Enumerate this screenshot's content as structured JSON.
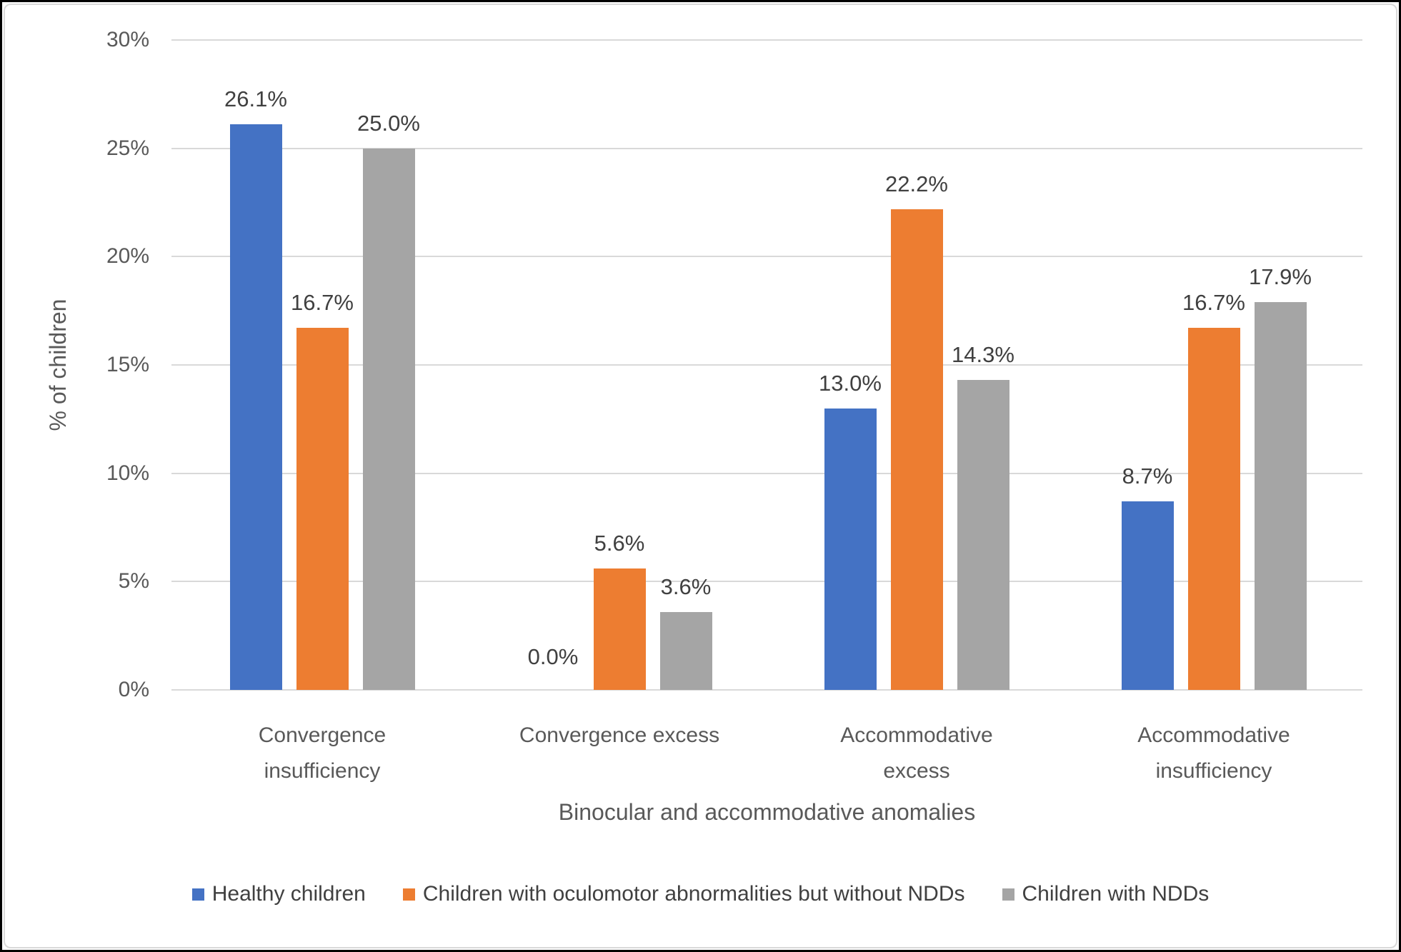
{
  "chart_data": {
    "type": "bar",
    "title": "",
    "categories": [
      "Convergence insufficiency",
      "Convergence excess",
      "Accommodative excess",
      "Accommodative insufficiency"
    ],
    "series": [
      {
        "name": "Healthy children",
        "color": "#4472C4",
        "values": [
          26.1,
          0.0,
          13.0,
          8.7
        ]
      },
      {
        "name": "Children with oculomotor abnormalities but without NDDs",
        "color": "#ED7D31",
        "values": [
          16.7,
          5.6,
          22.2,
          16.7
        ]
      },
      {
        "name": "Children with NDDs",
        "color": "#A5A5A5",
        "values": [
          25.0,
          3.6,
          14.3,
          17.9
        ]
      }
    ],
    "data_label_format": "one-decimal-percent",
    "xlabel": "Binocular and accommodative anomalies",
    "ylabel": "% of children",
    "ylim": [
      0,
      30
    ],
    "yticks": [
      0,
      5,
      10,
      15,
      20,
      25,
      30
    ],
    "ytick_labels": [
      "0%",
      "5%",
      "10%",
      "15%",
      "20%",
      "25%",
      "30%"
    ],
    "grid": true,
    "legend_position": "bottom"
  },
  "style": {
    "gridline_color": "#D9D9D9",
    "axis_text_color": "#595959",
    "data_label_color": "#404040",
    "background": "#FFFFFF",
    "border_color": "#000000"
  }
}
